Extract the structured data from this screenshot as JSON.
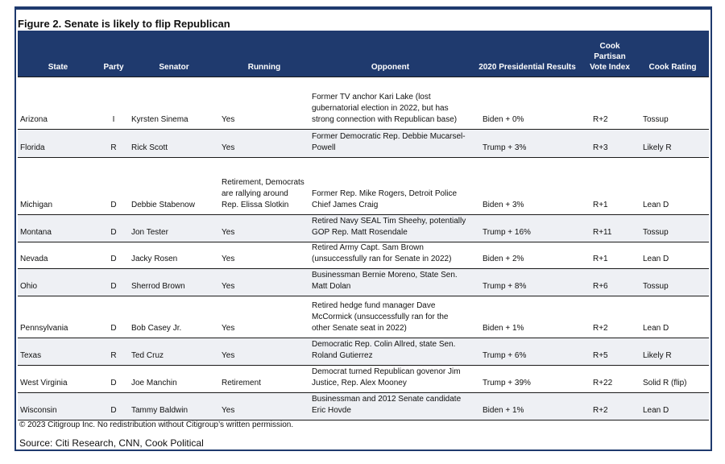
{
  "title": "Figure 2. Senate is likely to flip Republican",
  "table": {
    "header": [
      "State",
      "Party",
      "Senator",
      "Running",
      "Opponent",
      "2020 Presidential Results",
      "Cook Partisan Vote Index",
      "Cook Rating"
    ],
    "rows": [
      [
        "Arizona",
        "I",
        "Kyrsten Sinema",
        "Yes",
        "Former TV anchor Kari Lake (lost gubernatorial election in 2022, but has strong connection with Republican base)",
        "Biden + 0%",
        "R+2",
        "Tossup"
      ],
      [
        "Florida",
        "R",
        "Rick Scott",
        "Yes",
        "Former Democratic Rep. Debbie Mucarsel-Powell",
        "Trump + 3%",
        "R+3",
        "Likely R"
      ],
      [
        "Michigan",
        "D",
        "Debbie Stabenow",
        "Retirement, Democrats are rallying around Rep. Elissa Slotkin",
        "Former Rep. Mike Rogers, Detroit Police Chief James Craig",
        "Biden + 3%",
        "R+1",
        "Lean D"
      ],
      [
        "Montana",
        "D",
        "Jon Tester",
        "Yes",
        "Retired Navy SEAL Tim Sheehy, potentially GOP Rep. Matt Rosendale",
        "Trump + 16%",
        "R+11",
        "Tossup"
      ],
      [
        "Nevada",
        "D",
        "Jacky Rosen",
        "Yes",
        "Retired Army Capt. Sam Brown (unsuccessfully ran for Senate in 2022)",
        "Biden + 2%",
        "R+1",
        "Lean D"
      ],
      [
        "Ohio",
        "D",
        "Sherrod Brown",
        "Yes",
        "Businessman Bernie Moreno, State Sen. Matt Dolan",
        "Trump + 8%",
        "R+6",
        "Tossup"
      ],
      [
        "Pennsylvania",
        "D",
        "Bob Casey Jr.",
        "Yes",
        "Retired hedge fund manager Dave McCormick (unsuccessfully ran for the other Senate seat in 2022)",
        "Biden + 1%",
        "R+2",
        "Lean D"
      ],
      [
        "Texas",
        "R",
        "Ted Cruz",
        "Yes",
        "Democratic Rep. Colin Allred, state Sen. Roland Gutierrez",
        "Trump + 6%",
        "R+5",
        "Likely R"
      ],
      [
        "West Virginia",
        "D",
        "Joe Manchin",
        "Retirement",
        "Democrat turned Republican govenor Jim Justice, Rep. Alex Mooney",
        "Trump + 39%",
        "R+22",
        "Solid R (flip)"
      ],
      [
        "Wisconsin",
        "D",
        "Tammy Baldwin",
        "Yes",
        "Businessman and 2012 Senate candidate Eric Hovde",
        "Biden + 1%",
        "R+2",
        "Lean D"
      ]
    ]
  },
  "footer": {
    "copyright": "© 2023 Citigroup Inc. No redistribution without Citigroup’s written permission.",
    "source": "Source: Citi Research, CNN, Cook Political"
  }
}
